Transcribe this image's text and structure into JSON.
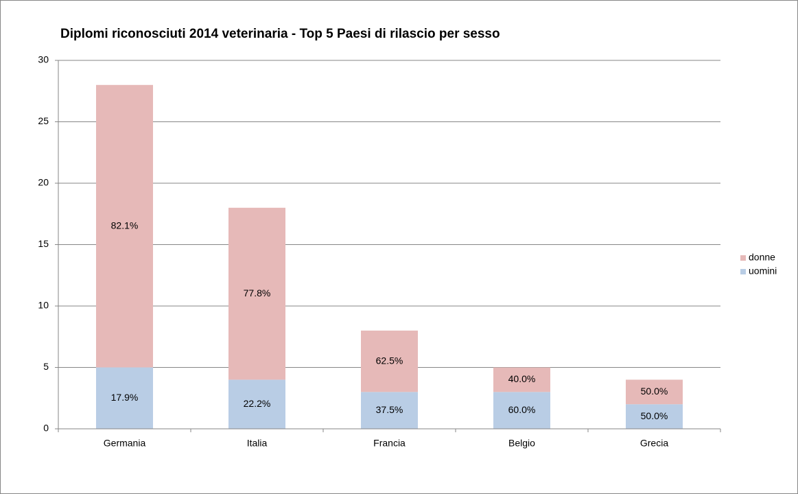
{
  "chart_data": {
    "type": "stacked_bar",
    "title": "Diplomi riconosciuti 2014 veterinaria - Top 5 Paesi di rilascio per sesso",
    "categories": [
      "Germania",
      "Italia",
      "Francia",
      "Belgio",
      "Grecia"
    ],
    "series": [
      {
        "name": "uomini",
        "color": "#b9cde5",
        "values": [
          5,
          4,
          3,
          3,
          2
        ],
        "data_labels": [
          "17.9%",
          "22.2%",
          "37.5%",
          "60.0%",
          "50.0%"
        ]
      },
      {
        "name": "donne",
        "color": "#e6b9b8",
        "values": [
          23,
          14,
          5,
          2,
          2
        ],
        "data_labels": [
          "82.1%",
          "77.8%",
          "62.5%",
          "40.0%",
          "50.0%"
        ]
      }
    ],
    "ylim": [
      0,
      30
    ],
    "yticks": [
      0,
      5,
      10,
      15,
      20,
      25,
      30
    ],
    "grid": true,
    "legend": "right"
  }
}
